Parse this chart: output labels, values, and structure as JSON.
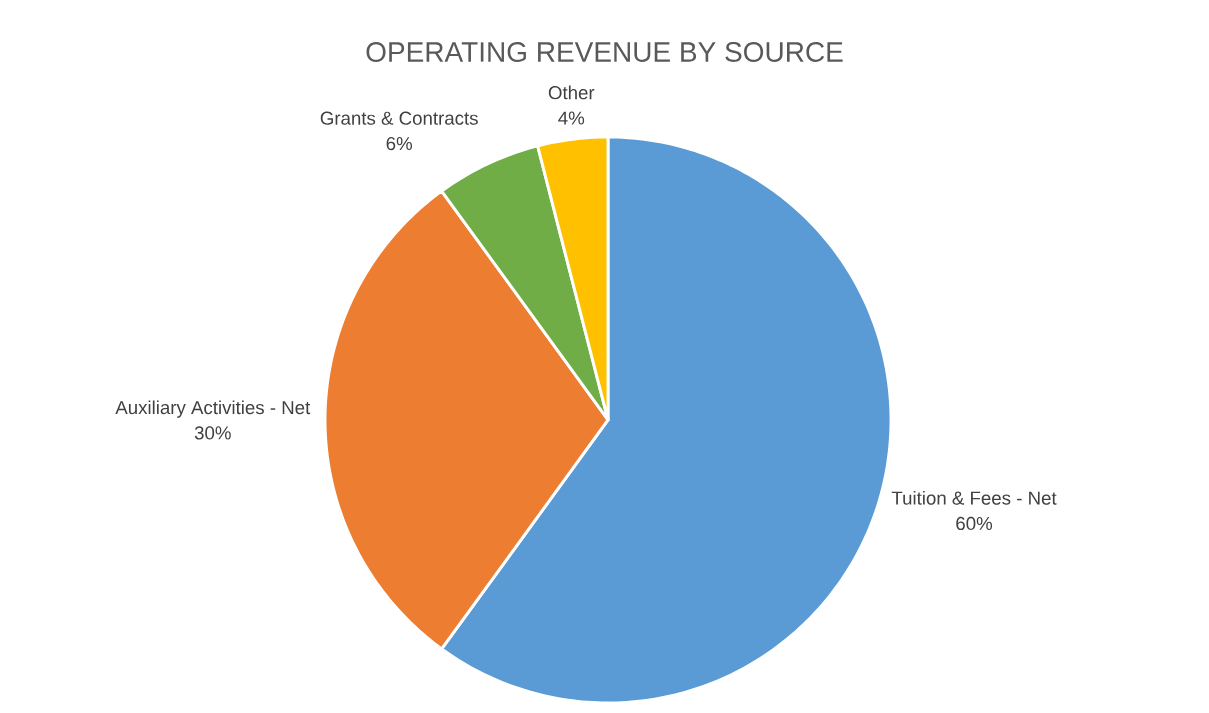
{
  "chart_data": {
    "type": "pie",
    "title": "OPERATING REVENUE BY SOURCE",
    "categories": [
      "Tuition & Fees - Net",
      "Auxiliary Activities - Net",
      "Grants & Contracts",
      "Other"
    ],
    "values": [
      60,
      30,
      6,
      4
    ],
    "colors": [
      "#5b9bd5",
      "#ed7d31",
      "#70ad47",
      "#ffc000"
    ],
    "value_labels": [
      "60%",
      "30%",
      "6%",
      "4%"
    ]
  }
}
